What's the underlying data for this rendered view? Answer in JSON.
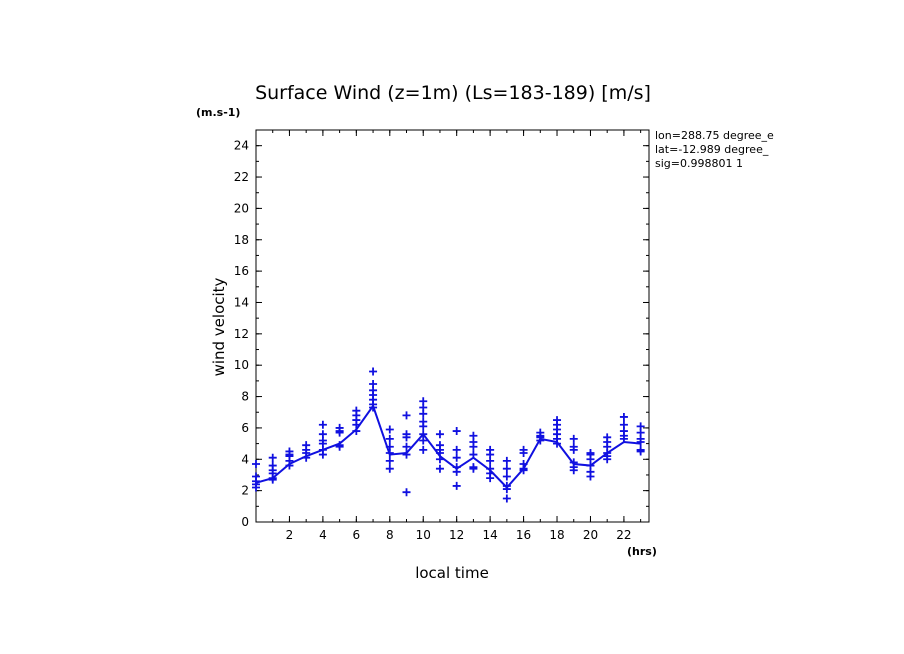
{
  "chart_data": {
    "type": "scatter",
    "title": "Surface Wind (z=1m) (Ls=183-189) [m/s]",
    "yunit": "(m.s-1)",
    "xunit": "(hrs)",
    "xlabel": "local time",
    "ylabel": "wind velocity",
    "xlim": [
      0,
      23.5
    ],
    "ylim": [
      0,
      25
    ],
    "xticks": [
      2,
      4,
      6,
      8,
      10,
      12,
      14,
      16,
      18,
      20,
      22
    ],
    "yticks": [
      0,
      2,
      4,
      6,
      8,
      10,
      12,
      14,
      16,
      18,
      20,
      22,
      24
    ],
    "info_lines": [
      "lon=288.75 degree_e",
      "lat=-12.989 degree_",
      "sig=0.998801 1"
    ],
    "color": "#1010e0",
    "series": [
      {
        "kind": "mean-line",
        "x": [
          0,
          1,
          2,
          3,
          4,
          5,
          6,
          7,
          8,
          9,
          10,
          11,
          12,
          13,
          14,
          15,
          16,
          17,
          18,
          19,
          20,
          21,
          22,
          23
        ],
        "values": [
          2.5,
          2.8,
          3.7,
          4.2,
          4.6,
          5.0,
          5.9,
          7.4,
          4.3,
          4.4,
          5.6,
          4.2,
          3.4,
          4.1,
          3.3,
          2.2,
          3.4,
          5.3,
          5.1,
          3.7,
          3.6,
          4.4,
          5.1,
          5.0
        ]
      },
      {
        "kind": "samples",
        "points": [
          [
            0,
            3.7
          ],
          [
            0,
            2.9
          ],
          [
            0,
            2.6
          ],
          [
            0,
            2.4
          ],
          [
            0,
            2.2
          ],
          [
            1,
            4.1
          ],
          [
            1,
            3.6
          ],
          [
            1,
            3.3
          ],
          [
            1,
            3.1
          ],
          [
            1,
            2.8
          ],
          [
            1,
            2.7
          ],
          [
            2,
            4.5
          ],
          [
            2,
            4.3
          ],
          [
            2,
            4.2
          ],
          [
            2,
            3.9
          ],
          [
            2,
            3.6
          ],
          [
            3,
            4.9
          ],
          [
            3,
            4.6
          ],
          [
            3,
            4.4
          ],
          [
            3,
            4.1
          ],
          [
            4,
            6.2
          ],
          [
            4,
            5.6
          ],
          [
            4,
            5.2
          ],
          [
            4,
            5.0
          ],
          [
            4,
            4.6
          ],
          [
            4,
            4.3
          ],
          [
            5,
            6.0
          ],
          [
            5,
            5.8
          ],
          [
            5,
            5.7
          ],
          [
            5,
            4.9
          ],
          [
            5,
            4.8
          ],
          [
            6,
            7.1
          ],
          [
            6,
            6.8
          ],
          [
            6,
            6.5
          ],
          [
            6,
            6.2
          ],
          [
            6,
            5.8
          ],
          [
            7,
            9.6
          ],
          [
            7,
            8.8
          ],
          [
            7,
            8.4
          ],
          [
            7,
            8.1
          ],
          [
            7,
            7.8
          ],
          [
            7,
            7.5
          ],
          [
            7,
            7.3
          ],
          [
            8,
            5.9
          ],
          [
            8,
            5.3
          ],
          [
            8,
            4.8
          ],
          [
            8,
            4.4
          ],
          [
            8,
            3.9
          ],
          [
            8,
            3.4
          ],
          [
            9,
            6.8
          ],
          [
            9,
            5.6
          ],
          [
            9,
            5.4
          ],
          [
            9,
            4.8
          ],
          [
            9,
            4.3
          ],
          [
            9,
            1.9
          ],
          [
            10,
            7.7
          ],
          [
            10,
            7.3
          ],
          [
            10,
            6.9
          ],
          [
            10,
            6.4
          ],
          [
            10,
            6.1
          ],
          [
            10,
            5.6
          ],
          [
            10,
            5.2
          ],
          [
            10,
            4.6
          ],
          [
            11,
            5.6
          ],
          [
            11,
            4.9
          ],
          [
            11,
            4.6
          ],
          [
            11,
            4.4
          ],
          [
            11,
            4.0
          ],
          [
            11,
            3.4
          ],
          [
            12,
            5.8
          ],
          [
            12,
            4.6
          ],
          [
            12,
            4.1
          ],
          [
            12,
            3.5
          ],
          [
            12,
            3.2
          ],
          [
            12,
            2.3
          ],
          [
            13,
            5.5
          ],
          [
            13,
            5.1
          ],
          [
            13,
            4.8
          ],
          [
            13,
            4.3
          ],
          [
            13,
            3.5
          ],
          [
            13,
            3.4
          ],
          [
            14,
            4.6
          ],
          [
            14,
            4.3
          ],
          [
            14,
            3.9
          ],
          [
            14,
            3.4
          ],
          [
            14,
            3.1
          ],
          [
            14,
            2.8
          ],
          [
            15,
            3.9
          ],
          [
            15,
            3.4
          ],
          [
            15,
            2.9
          ],
          [
            15,
            2.3
          ],
          [
            15,
            2.1
          ],
          [
            15,
            1.5
          ],
          [
            16,
            4.6
          ],
          [
            16,
            4.4
          ],
          [
            16,
            3.7
          ],
          [
            16,
            3.4
          ],
          [
            16,
            3.3
          ],
          [
            17,
            5.7
          ],
          [
            17,
            5.5
          ],
          [
            17,
            5.4
          ],
          [
            17,
            5.2
          ],
          [
            18,
            6.5
          ],
          [
            18,
            6.2
          ],
          [
            18,
            5.9
          ],
          [
            18,
            5.6
          ],
          [
            18,
            5.3
          ],
          [
            18,
            5.0
          ],
          [
            19,
            5.3
          ],
          [
            19,
            4.8
          ],
          [
            19,
            4.6
          ],
          [
            19,
            3.8
          ],
          [
            19,
            3.5
          ],
          [
            19,
            3.3
          ],
          [
            20,
            4.4
          ],
          [
            20,
            4.3
          ],
          [
            20,
            4.0
          ],
          [
            20,
            3.6
          ],
          [
            20,
            3.2
          ],
          [
            20,
            2.9
          ],
          [
            21,
            5.4
          ],
          [
            21,
            5.1
          ],
          [
            21,
            4.8
          ],
          [
            21,
            4.4
          ],
          [
            21,
            4.2
          ],
          [
            21,
            4.0
          ],
          [
            22,
            6.7
          ],
          [
            22,
            6.2
          ],
          [
            22,
            5.8
          ],
          [
            22,
            5.5
          ],
          [
            22,
            5.3
          ],
          [
            23,
            6.1
          ],
          [
            23,
            5.7
          ],
          [
            23,
            5.3
          ],
          [
            23,
            5.1
          ],
          [
            23,
            4.6
          ],
          [
            23,
            4.5
          ]
        ]
      }
    ]
  }
}
